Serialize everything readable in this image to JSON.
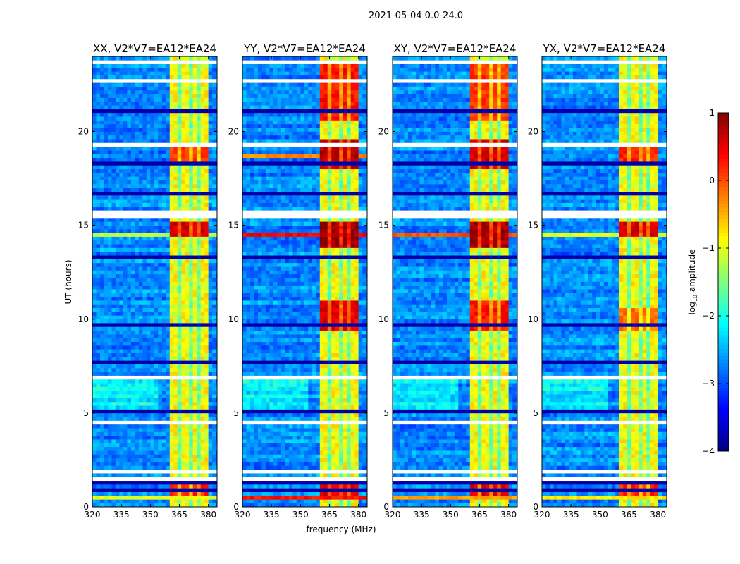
{
  "chart_data": {
    "type": "heatmap",
    "title": "2021-05-04 0.0-24.0",
    "xlabel": "frequency (MHz)",
    "ylabel": "UT (hours)",
    "xlim": [
      320,
      384.5
    ],
    "ylim": [
      0,
      24
    ],
    "xticks": [
      "320",
      "335",
      "350",
      "365",
      "380"
    ],
    "xtick_values": [
      320,
      335,
      350,
      365,
      380
    ],
    "yticks": [
      "0",
      "5",
      "10",
      "15",
      "20"
    ],
    "ytick_values": [
      0,
      5,
      10,
      15,
      20
    ],
    "colorbar": {
      "label": "log10 amplitude",
      "label_main": "log",
      "label_sub": "10",
      "label_tail": " amplitude",
      "colormap": "jet",
      "range": [
        -4,
        1
      ],
      "ticks": [
        "1",
        "0",
        "−1",
        "−2",
        "−3",
        "−4"
      ],
      "tick_values": [
        1,
        0,
        -1,
        -2,
        -3,
        -4
      ]
    },
    "model": {
      "freq_bin_MHz": 2,
      "time_bin_hours": 0.2,
      "background_log_amp": -2.7,
      "band_MHz": [
        361,
        380
      ],
      "band_log_amp": -0.9,
      "band_gaps_MHz": [
        365.5,
        370.5,
        375.5
      ],
      "flagged_hours": [
        1.5,
        1.9,
        4.6,
        6.9,
        15.5,
        15.7,
        19.3,
        22.6,
        23.6
      ],
      "dark_hours": [
        0.9,
        1.3,
        5.1,
        7.8,
        9.7,
        13.2,
        16.7,
        18.3,
        21.1
      ]
    },
    "panels": [
      {
        "title": "XX, V2*V7=EA12*EA24",
        "band_boosts": [
          {
            "hours": [
              14.3,
              15.1
            ],
            "log_amp": 0.6
          },
          {
            "hours": [
              18.2,
              19.3
            ],
            "log_amp": 0.1
          },
          {
            "hours": [
              0.6,
              1.3
            ],
            "log_amp": 0.2
          }
        ],
        "rfi_rows": [
          {
            "hour": 14.5,
            "log_amp": -1.2
          },
          {
            "hour": 0.6,
            "log_amp": -1.0
          }
        ],
        "bright_bg": [
          5.3,
          6.9
        ]
      },
      {
        "title": "YY, V2*V7=EA12*EA24",
        "band_boosts": [
          {
            "hours": [
              13.8,
              15.2
            ],
            "log_amp": 0.9
          },
          {
            "hours": [
              17.9,
              19.6
            ],
            "log_amp": 0.7
          },
          {
            "hours": [
              9.4,
              11.0
            ],
            "log_amp": 0.5
          },
          {
            "hours": [
              20.6,
              23.8
            ],
            "log_amp": 0.3
          },
          {
            "hours": [
              0.6,
              1.3
            ],
            "log_amp": 0.6
          }
        ],
        "rfi_rows": [
          {
            "hour": 14.5,
            "log_amp": 0.4
          },
          {
            "hour": 0.6,
            "log_amp": 0.3
          },
          {
            "hour": 18.7,
            "log_amp": -0.3
          }
        ],
        "bright_bg": [
          5.3,
          6.9
        ]
      },
      {
        "title": "XY, V2*V7=EA12*EA24",
        "band_boosts": [
          {
            "hours": [
              13.8,
              15.2
            ],
            "log_amp": 0.8
          },
          {
            "hours": [
              17.9,
              19.6
            ],
            "log_amp": 0.6
          },
          {
            "hours": [
              9.4,
              11.0
            ],
            "log_amp": 0.3
          },
          {
            "hours": [
              20.6,
              23.8
            ],
            "log_amp": 0.1
          },
          {
            "hours": [
              0.6,
              1.3
            ],
            "log_amp": 0.5
          }
        ],
        "rfi_rows": [
          {
            "hour": 14.5,
            "log_amp": 0.0
          },
          {
            "hour": 0.6,
            "log_amp": -0.4
          }
        ],
        "bright_bg": [
          5.3,
          6.9
        ]
      },
      {
        "title": "YX, V2*V7=EA12*EA24",
        "band_boosts": [
          {
            "hours": [
              14.3,
              15.1
            ],
            "log_amp": 0.6
          },
          {
            "hours": [
              18.2,
              19.3
            ],
            "log_amp": 0.2
          },
          {
            "hours": [
              9.4,
              10.6
            ],
            "log_amp": -0.2
          },
          {
            "hours": [
              0.6,
              1.3
            ],
            "log_amp": 0.2
          }
        ],
        "rfi_rows": [
          {
            "hour": 14.5,
            "log_amp": -1.0
          },
          {
            "hour": 0.6,
            "log_amp": -0.8
          }
        ],
        "bright_bg": [
          5.3,
          6.9
        ]
      }
    ]
  }
}
